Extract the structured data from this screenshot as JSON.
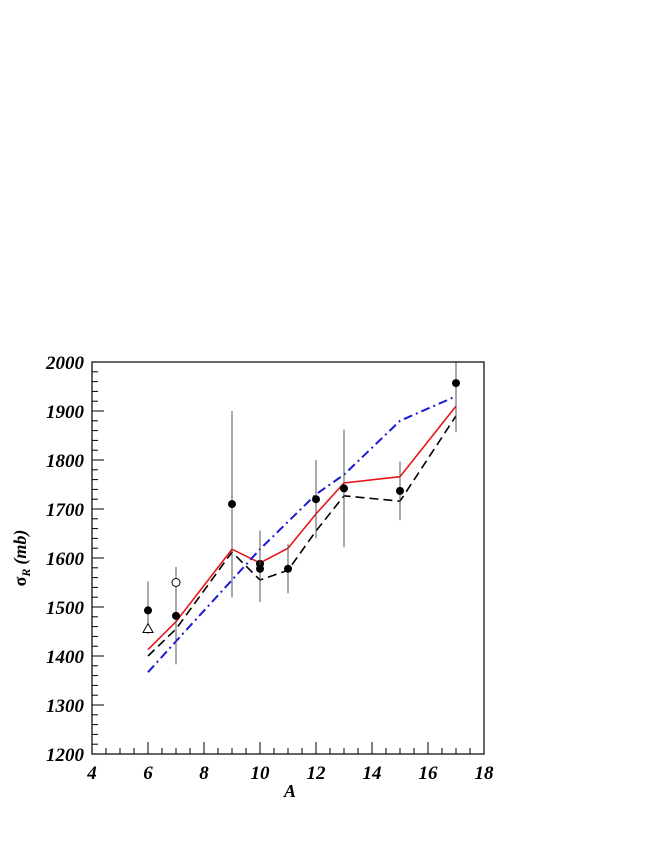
{
  "chart_data": {
    "type": "line",
    "title": "",
    "xlabel": "A",
    "ylabel": {
      "main": "σ",
      "sub": "R",
      "unit": "(mb)"
    },
    "xlim": [
      4,
      18
    ],
    "ylim": [
      1200,
      2000
    ],
    "x_ticks": [
      4,
      6,
      8,
      10,
      12,
      14,
      16,
      18
    ],
    "y_ticks": [
      1200,
      1300,
      1400,
      1500,
      1600,
      1700,
      1800,
      1900,
      2000
    ],
    "grid": false,
    "legend": "none",
    "series": [
      {
        "kind": "line",
        "style": "solid",
        "color": "#e8141c",
        "points": [
          [
            6,
            1413
          ],
          [
            7,
            1470
          ],
          [
            9,
            1618
          ],
          [
            10,
            1590
          ],
          [
            11,
            1620
          ],
          [
            12,
            1690
          ],
          [
            13,
            1753
          ],
          [
            15,
            1766
          ],
          [
            17,
            1910
          ]
        ]
      },
      {
        "kind": "line",
        "style": "dashed",
        "color": "#000000",
        "points": [
          [
            6,
            1400
          ],
          [
            7,
            1455
          ],
          [
            9,
            1612
          ],
          [
            10,
            1555
          ],
          [
            11,
            1575
          ],
          [
            12,
            1655
          ],
          [
            13,
            1727
          ],
          [
            15,
            1716
          ],
          [
            17,
            1890
          ]
        ]
      },
      {
        "kind": "line",
        "style": "dash-dot",
        "color": "#1a1ad6",
        "points": [
          [
            6,
            1367
          ],
          [
            7,
            1430
          ],
          [
            9,
            1555
          ],
          [
            10,
            1618
          ],
          [
            12,
            1730
          ],
          [
            13,
            1770
          ],
          [
            15,
            1880
          ],
          [
            17,
            1930
          ]
        ]
      },
      {
        "kind": "points",
        "marker": "filled-circle",
        "color": "#000000",
        "points": [
          {
            "x": 6,
            "y": 1493,
            "err": [
              1445,
              1552
            ]
          },
          {
            "x": 7,
            "y": 1482,
            "err": [
              1383,
              1582
            ]
          },
          {
            "x": 9,
            "y": 1710,
            "err": [
              1520,
              1900
            ]
          },
          {
            "x": 10,
            "y": 1588,
            "err": [
              1520,
              1656
            ]
          },
          {
            "x": 10,
            "y": 1578,
            "err": [
              1510,
              1646
            ]
          },
          {
            "x": 11,
            "y": 1578,
            "err": [
              1528,
              1628
            ]
          },
          {
            "x": 12,
            "y": 1720,
            "err": [
              1640,
              1800
            ]
          },
          {
            "x": 13,
            "y": 1742,
            "err": [
              1622,
              1862
            ]
          },
          {
            "x": 15,
            "y": 1737,
            "err": [
              1677,
              1797
            ]
          },
          {
            "x": 17,
            "y": 1957,
            "err": [
              1857,
              2000
            ]
          }
        ]
      },
      {
        "kind": "points",
        "marker": "open-circle",
        "color": "#000000",
        "points": [
          {
            "x": 7,
            "y": 1550
          }
        ]
      },
      {
        "kind": "points",
        "marker": "open-triangle",
        "color": "#000000",
        "points": [
          {
            "x": 6,
            "y": 1456
          }
        ]
      }
    ]
  }
}
